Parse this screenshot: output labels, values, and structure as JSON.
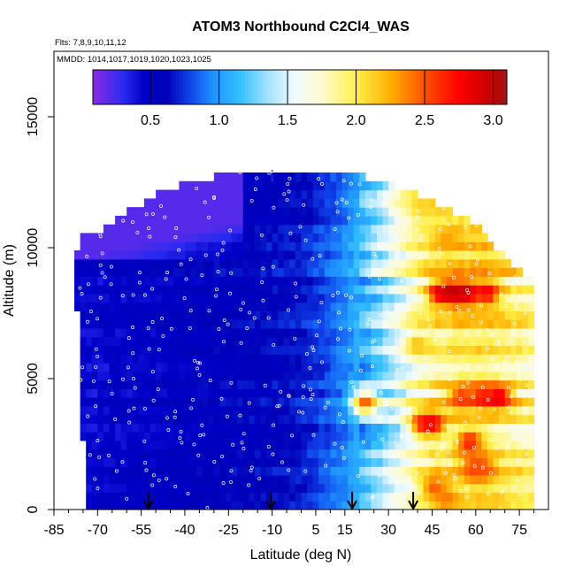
{
  "chart_data": {
    "type": "heatmap",
    "title": "ATOM3 Northbound C2Cl4_WAS",
    "subtitle_flights": "Flts: 7,8,9,10,11,12",
    "subtitle_dates": "MMDD: 1014,1017,1019,1020,1023,1025",
    "xlabel": "Latitude (deg N)",
    "ylabel": "Altitude (m)",
    "xlim": [
      -85,
      85
    ],
    "ylim": [
      0,
      17500
    ],
    "xticks": [
      -85,
      -70,
      -55,
      -40,
      -25,
      -10,
      5,
      15,
      30,
      45,
      60,
      75
    ],
    "xtick_labels": [
      "-85",
      "-70",
      "-55",
      "-40",
      "-25",
      "-10",
      "5",
      "15",
      "30",
      "45",
      "60",
      "75"
    ],
    "yticks": [
      0,
      5000,
      10000,
      15000
    ],
    "ytick_labels": [
      "0",
      "5000",
      "10000",
      "15000"
    ],
    "colorbar": {
      "min": 0.08,
      "max": 3.1,
      "ticks": [
        0.5,
        1.0,
        1.5,
        2.0,
        2.5,
        3.0
      ],
      "tick_labels": [
        "0.5",
        "1.0",
        "1.5",
        "2.0",
        "2.5",
        "3.0"
      ],
      "stops": [
        [
          0.08,
          "#8a2be2"
        ],
        [
          0.3,
          "#2a2af0"
        ],
        [
          0.45,
          "#0000c8"
        ],
        [
          0.62,
          "#0000b8"
        ],
        [
          0.78,
          "#1040e8"
        ],
        [
          0.95,
          "#1e90ff"
        ],
        [
          1.15,
          "#33c0ff"
        ],
        [
          1.35,
          "#a0e0ff"
        ],
        [
          1.55,
          "#f0fbff"
        ],
        [
          1.75,
          "#fffbd0"
        ],
        [
          2.0,
          "#fff04a"
        ],
        [
          2.25,
          "#ffb000"
        ],
        [
          2.5,
          "#ff5000"
        ],
        [
          2.75,
          "#ff0000"
        ],
        [
          3.0,
          "#c00000"
        ],
        [
          3.1,
          "#9a1a1a"
        ]
      ]
    },
    "altitude_coverage": [
      {
        "lat": -78,
        "top": 9500
      },
      {
        "lat": -75,
        "top": 10500
      },
      {
        "lat": -70,
        "top": 10600
      },
      {
        "lat": -65,
        "top": 11000
      },
      {
        "lat": -60,
        "top": 11400
      },
      {
        "lat": -55,
        "top": 11700
      },
      {
        "lat": -50,
        "top": 12000
      },
      {
        "lat": -45,
        "top": 12300
      },
      {
        "lat": -38,
        "top": 12500
      },
      {
        "lat": -30,
        "top": 12700
      },
      {
        "lat": -25,
        "top": 12900
      },
      {
        "lat": -20,
        "top": 12900
      },
      {
        "lat": -15,
        "top": 12900
      },
      {
        "lat": -10,
        "top": 12900
      },
      {
        "lat": 0,
        "top": 12900
      },
      {
        "lat": 10,
        "top": 12900
      },
      {
        "lat": 18,
        "top": 12900
      },
      {
        "lat": 25,
        "top": 12600
      },
      {
        "lat": 35,
        "top": 12300
      },
      {
        "lat": 40,
        "top": 12000
      },
      {
        "lat": 50,
        "top": 11500
      },
      {
        "lat": 58,
        "top": 11000
      },
      {
        "lat": 62,
        "top": 10800
      },
      {
        "lat": 68,
        "top": 9900
      },
      {
        "lat": 73,
        "top": 9300
      },
      {
        "lat": 76,
        "top": 9100
      },
      {
        "lat": 79,
        "top": 9000
      }
    ],
    "lat_bounds": {
      "south_top": -78,
      "south_bottom": -74,
      "north": 79
    },
    "background_gradient": [
      {
        "lat": -78,
        "value": 0.45
      },
      {
        "lat": -45,
        "value": 0.52
      },
      {
        "lat": -25,
        "value": 0.58
      },
      {
        "lat": -10,
        "value": 0.62
      },
      {
        "lat": 0,
        "value": 0.68
      },
      {
        "lat": 8,
        "value": 0.8
      },
      {
        "lat": 15,
        "value": 0.95
      },
      {
        "lat": 22,
        "value": 1.15
      },
      {
        "lat": 30,
        "value": 1.45
      },
      {
        "lat": 38,
        "value": 1.75
      },
      {
        "lat": 45,
        "value": 1.95
      },
      {
        "lat": 55,
        "value": 2.05
      },
      {
        "lat": 65,
        "value": 2.05
      },
      {
        "lat": 79,
        "value": 1.9
      }
    ],
    "upper_purple_region": {
      "lat_min": -78,
      "lat_max": -20,
      "alt_min": 9500,
      "value": 0.2
    },
    "hotspots": [
      {
        "lat": 48,
        "alt": 8300,
        "value": 2.9
      },
      {
        "lat": 52,
        "alt": 8300,
        "value": 3.0
      },
      {
        "lat": 57,
        "alt": 8300,
        "value": 3.05
      },
      {
        "lat": 64,
        "alt": 8300,
        "value": 2.8
      },
      {
        "lat": 22,
        "alt": 4100,
        "value": 2.5
      },
      {
        "lat": 55,
        "alt": 4300,
        "value": 2.6
      },
      {
        "lat": 62,
        "alt": 4300,
        "value": 2.7
      },
      {
        "lat": 68,
        "alt": 4300,
        "value": 2.9
      },
      {
        "lat": 42,
        "alt": 3300,
        "value": 2.6
      },
      {
        "lat": 45,
        "alt": 3300,
        "value": 2.8
      },
      {
        "lat": 58,
        "alt": 2600,
        "value": 2.7
      },
      {
        "lat": 60,
        "alt": 1600,
        "value": 2.6
      },
      {
        "lat": 62,
        "alt": 1600,
        "value": 2.5
      },
      {
        "lat": 46,
        "alt": 900,
        "value": 2.5
      },
      {
        "lat": 50,
        "alt": 400,
        "value": 2.4
      },
      {
        "lat": 40,
        "alt": 6300,
        "value": 2.2
      },
      {
        "lat": 50,
        "alt": 10300,
        "value": 2.3
      },
      {
        "lat": 42,
        "alt": 11500,
        "value": 2.1
      }
    ],
    "sample_point_count": 420,
    "arrows_lat": [
      -52.5,
      -10.5,
      17.5,
      38.5
    ],
    "frame_marker_lat": -10
  }
}
